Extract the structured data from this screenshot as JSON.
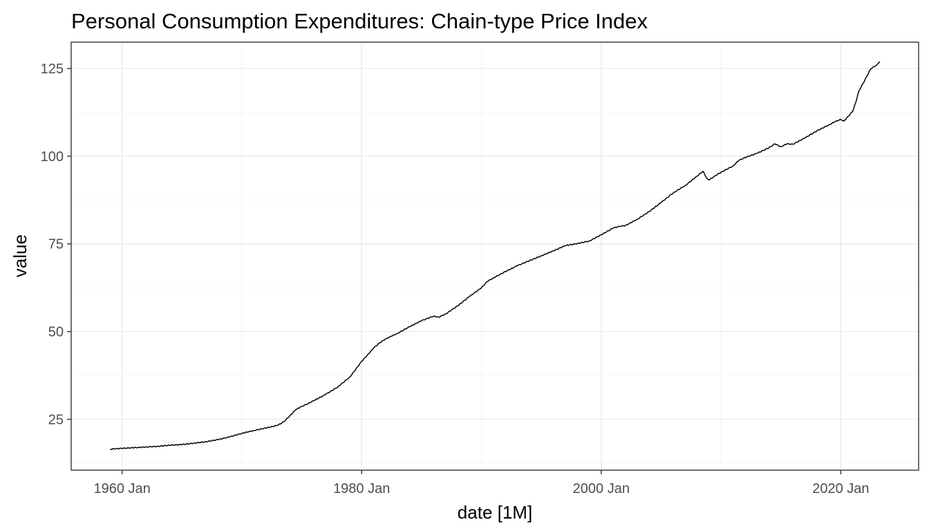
{
  "chart_data": {
    "type": "line",
    "title": "Personal Consumption Expenditures: Chain-type Price Index",
    "xlabel": "date [1M]",
    "ylabel": "value",
    "x_ticks": [
      "1960-01",
      "1980-01",
      "2000-01",
      "2020-01"
    ],
    "x_tick_labels": [
      "1960 Jan",
      "1980 Jan",
      "2000 Jan",
      "2020 Jan"
    ],
    "y_ticks": [
      25,
      50,
      75,
      100,
      125
    ],
    "y_tick_labels": [
      "25",
      "50",
      "75",
      "100",
      "125"
    ],
    "xlim": [
      "1955-10",
      "2026-07"
    ],
    "ylim": [
      10.5,
      132.5
    ],
    "grid": true,
    "legend": "none",
    "colors": {
      "line": "#000000",
      "grid": "#ebebeb",
      "border": "#333333"
    },
    "series": [
      {
        "x": [
          "1959-01",
          "1960-01",
          "1961-01",
          "1962-01",
          "1963-01",
          "1964-01",
          "1965-01",
          "1966-01",
          "1967-01",
          "1968-01",
          "1969-01",
          "1970-01",
          "1971-01",
          "1972-01",
          "1973-01",
          "1973-07",
          "1974-01",
          "1974-07",
          "1975-01",
          "1975-07",
          "1976-01",
          "1977-01",
          "1978-01",
          "1979-01",
          "1979-07",
          "1980-01",
          "1980-07",
          "1981-01",
          "1981-07",
          "1982-01",
          "1982-07",
          "1983-01",
          "1984-01",
          "1985-01",
          "1986-01",
          "1986-06",
          "1987-01",
          "1988-01",
          "1989-01",
          "1990-01",
          "1990-07",
          "1991-01",
          "1992-01",
          "1993-01",
          "1994-01",
          "1995-01",
          "1996-01",
          "1997-01",
          "1998-01",
          "1999-01",
          "2000-01",
          "2001-01",
          "2001-07",
          "2002-01",
          "2003-01",
          "2004-01",
          "2005-01",
          "2006-01",
          "2007-01",
          "2008-01",
          "2008-07",
          "2008-11",
          "2009-01",
          "2009-07",
          "2010-01",
          "2011-01",
          "2011-07",
          "2012-01",
          "2013-01",
          "2014-01",
          "2014-07",
          "2015-01",
          "2015-07",
          "2016-01",
          "2017-01",
          "2018-01",
          "2019-01",
          "2019-07",
          "2020-01",
          "2020-04",
          "2020-09",
          "2021-01",
          "2021-04",
          "2021-07",
          "2022-01",
          "2022-07",
          "2023-01",
          "2023-04"
        ],
        "values": [
          16.5,
          16.7,
          16.9,
          17.1,
          17.3,
          17.6,
          17.8,
          18.2,
          18.6,
          19.2,
          20.0,
          21.0,
          21.8,
          22.5,
          23.3,
          24.3,
          26.0,
          27.7,
          28.7,
          29.4,
          30.3,
          32.1,
          34.2,
          37.0,
          39.2,
          41.5,
          43.4,
          45.3,
          46.8,
          47.9,
          48.7,
          49.5,
          51.4,
          53.1,
          54.4,
          54.1,
          55.0,
          57.3,
          60.0,
          62.5,
          64.3,
          65.3,
          67.1,
          68.8,
          70.2,
          71.6,
          73.0,
          74.5,
          75.1,
          75.8,
          77.6,
          79.5,
          80.0,
          80.2,
          82.0,
          84.2,
          86.8,
          89.5,
          91.6,
          94.3,
          95.7,
          93.6,
          93.2,
          94.4,
          95.4,
          97.2,
          98.8,
          99.6,
          100.8,
          102.4,
          103.5,
          102.7,
          103.5,
          103.4,
          105.2,
          107.2,
          108.9,
          109.8,
          110.5,
          110.0,
          111.5,
          112.8,
          115.3,
          118.5,
          121.6,
          124.9,
          126.0,
          127.0
        ]
      }
    ]
  }
}
